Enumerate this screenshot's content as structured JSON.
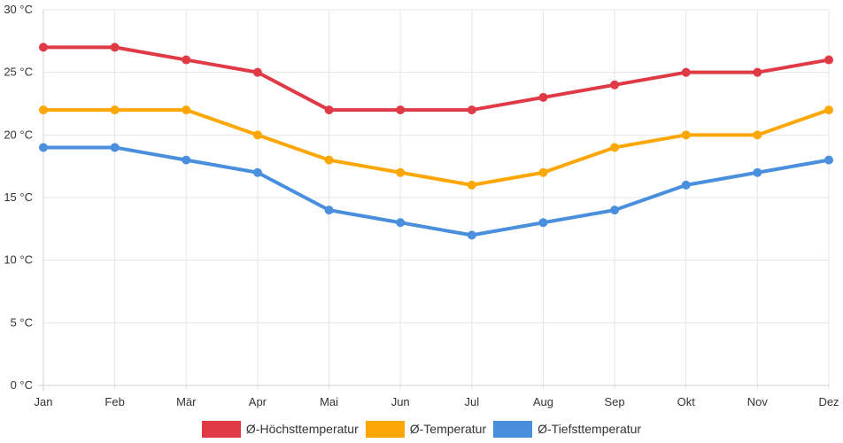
{
  "chart_data": {
    "type": "line",
    "categories": [
      "Jan",
      "Feb",
      "Mär",
      "Apr",
      "Mai",
      "Jun",
      "Jul",
      "Aug",
      "Sep",
      "Okt",
      "Nov",
      "Dez"
    ],
    "series": [
      {
        "name": "Ø-Höchsttemperatur",
        "color": "#e03a47",
        "values": [
          27,
          27,
          26,
          25,
          22,
          22,
          22,
          23,
          24,
          25,
          25,
          26
        ]
      },
      {
        "name": "Ø-Temperatur",
        "color": "#fca705",
        "values": [
          22,
          22,
          22,
          20,
          18,
          17,
          16,
          17,
          19,
          20,
          20,
          22
        ]
      },
      {
        "name": "Ø-Tiefsttemperatur",
        "color": "#4a8fdd",
        "values": [
          19,
          19,
          18,
          17,
          14,
          13,
          12,
          13,
          14,
          16,
          17,
          18
        ]
      }
    ],
    "y_ticks": [
      "0 °C",
      "5 °C",
      "10 °C",
      "15 °C",
      "20 °C",
      "25 °C",
      "30 °C"
    ],
    "ylim": [
      0,
      30
    ],
    "grid": true,
    "legend_position": "bottom"
  }
}
